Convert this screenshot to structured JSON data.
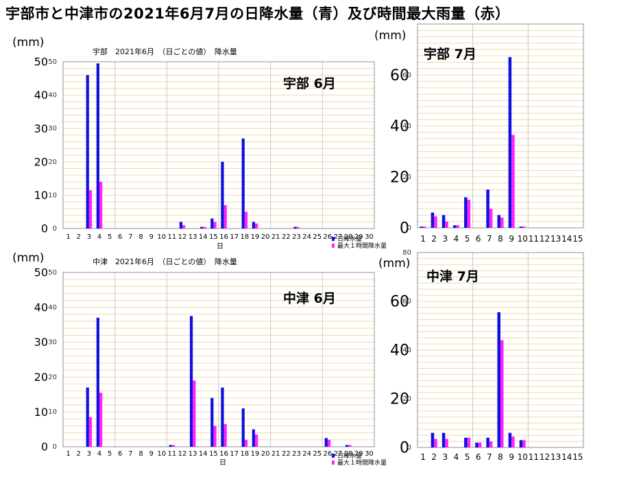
{
  "page_title": "宇部市と中津市の2021年6月7月の日降水量（青）及び時間最大雨量（赤）",
  "colors": {
    "daily": "#1010e0",
    "hourly_max": "#ff22ff",
    "grid_h": "#f2d9a6",
    "grid_v": "#c8c8c8",
    "frame": "#909090"
  },
  "chart_data": [
    {
      "id": "ube-june",
      "type": "bar",
      "title": "宇部 6月",
      "subtitle": "宇部　2021年6月　（日ごとの値）　降水量",
      "unit": "(mm)",
      "xlabel": "日",
      "ylim": [
        0,
        50
      ],
      "y_ticks_big": [
        "0",
        "10",
        "20",
        "30",
        "40",
        "50"
      ],
      "y_ticks_small": [
        "0",
        "10",
        "20",
        "30",
        "40",
        "50"
      ],
      "categories": [
        "1",
        "2",
        "3",
        "4",
        "5",
        "6",
        "7",
        "8",
        "9",
        "10",
        "11",
        "12",
        "13",
        "14",
        "15",
        "16",
        "17",
        "18",
        "19",
        "20",
        "21",
        "22",
        "23",
        "24",
        "25",
        "26",
        "27",
        "28",
        "29",
        "30"
      ],
      "legend": [
        "日降水量",
        "最大１時間降水量"
      ],
      "series": [
        {
          "name": "日降水量",
          "values": [
            0,
            0,
            46,
            49.5,
            0,
            0,
            0,
            0,
            0,
            0,
            0,
            2,
            0,
            0.5,
            3,
            20,
            0,
            27,
            2,
            0,
            0,
            0,
            0.5,
            0,
            0,
            0,
            0,
            0,
            0,
            0
          ]
        },
        {
          "name": "最大１時間降水量",
          "values": [
            0,
            0,
            11.5,
            14,
            0,
            0,
            0,
            0,
            0,
            0,
            0,
            1,
            0,
            0.5,
            2,
            7,
            0,
            5,
            1.5,
            0,
            0,
            0,
            0.5,
            0,
            0,
            0,
            0,
            0,
            0,
            0
          ]
        }
      ]
    },
    {
      "id": "nakatsu-june",
      "type": "bar",
      "title": "中津 6月",
      "subtitle": "中津　2021年6月　（日ごとの値）　降水量",
      "unit": "(mm)",
      "xlabel": "日",
      "ylim": [
        0,
        50
      ],
      "y_ticks_big": [
        "0",
        "10",
        "20",
        "30",
        "40",
        "50"
      ],
      "y_ticks_small": [
        "0",
        "10",
        "20",
        "30",
        "40",
        "50"
      ],
      "categories": [
        "1",
        "2",
        "3",
        "4",
        "5",
        "6",
        "7",
        "8",
        "9",
        "10",
        "11",
        "12",
        "13",
        "14",
        "15",
        "16",
        "17",
        "18",
        "19",
        "20",
        "21",
        "22",
        "23",
        "24",
        "25",
        "26",
        "27",
        "28",
        "29",
        "30"
      ],
      "legend": [
        "日降水量",
        "最大１時間降水量"
      ],
      "series": [
        {
          "name": "日降水量",
          "values": [
            0,
            0,
            17,
            37,
            0,
            0,
            0,
            0,
            0,
            0,
            0.5,
            0,
            37.5,
            0,
            14,
            17,
            0,
            11,
            5,
            0,
            0,
            0,
            0,
            0,
            0,
            2.5,
            0,
            0.5,
            0,
            0
          ]
        },
        {
          "name": "最大１時間降水量",
          "values": [
            0,
            0,
            8.5,
            15.5,
            0,
            0,
            0,
            0,
            0,
            0,
            0.5,
            0,
            19,
            0,
            6,
            6.5,
            0,
            2,
            3.5,
            0,
            0,
            0,
            0,
            0,
            0,
            2,
            0,
            0.5,
            0,
            0
          ]
        }
      ]
    },
    {
      "id": "ube-july",
      "type": "bar",
      "title": "宇部 7月",
      "unit": "(mm)",
      "ylim": [
        0,
        80
      ],
      "y_ticks_big": [
        "0",
        "20",
        "40",
        "60"
      ],
      "y_ticks_small": [
        "0",
        "20",
        "40",
        "60"
      ],
      "categories": [
        "1",
        "2",
        "3",
        "4",
        "5",
        "6",
        "7",
        "8",
        "9",
        "10",
        "11",
        "12",
        "13",
        "14",
        "15"
      ],
      "series": [
        {
          "name": "",
          "values": [
            0.5,
            6,
            5,
            1,
            12,
            0,
            15,
            5,
            67,
            0.5,
            0,
            0,
            0,
            0,
            0
          ]
        },
        {
          "name": "",
          "values": [
            0.5,
            4.5,
            2.5,
            1,
            11,
            0,
            7.5,
            4,
            36.5,
            0.5,
            0,
            0,
            0,
            0,
            0
          ]
        }
      ]
    },
    {
      "id": "nakatsu-july",
      "type": "bar",
      "title": "中津 7月",
      "unit": "(mm)",
      "ylim": [
        0,
        80
      ],
      "y_ticks_big": [
        "0",
        "20",
        "40",
        "60"
      ],
      "y_ticks_small": [
        "0",
        "20",
        "40",
        "60",
        "80"
      ],
      "categories": [
        "1",
        "2",
        "3",
        "4",
        "5",
        "6",
        "7",
        "8",
        "9",
        "10",
        "11",
        "12",
        "13",
        "14",
        "15"
      ],
      "series": [
        {
          "name": "",
          "values": [
            0,
            6,
            6,
            0,
            4,
            2,
            4,
            55.5,
            6,
            3,
            0,
            0,
            0,
            0,
            0
          ]
        },
        {
          "name": "",
          "values": [
            0,
            3.5,
            3.5,
            0,
            4,
            2,
            2.5,
            44,
            4.5,
            3,
            0,
            0,
            0,
            0,
            0
          ]
        }
      ]
    }
  ]
}
